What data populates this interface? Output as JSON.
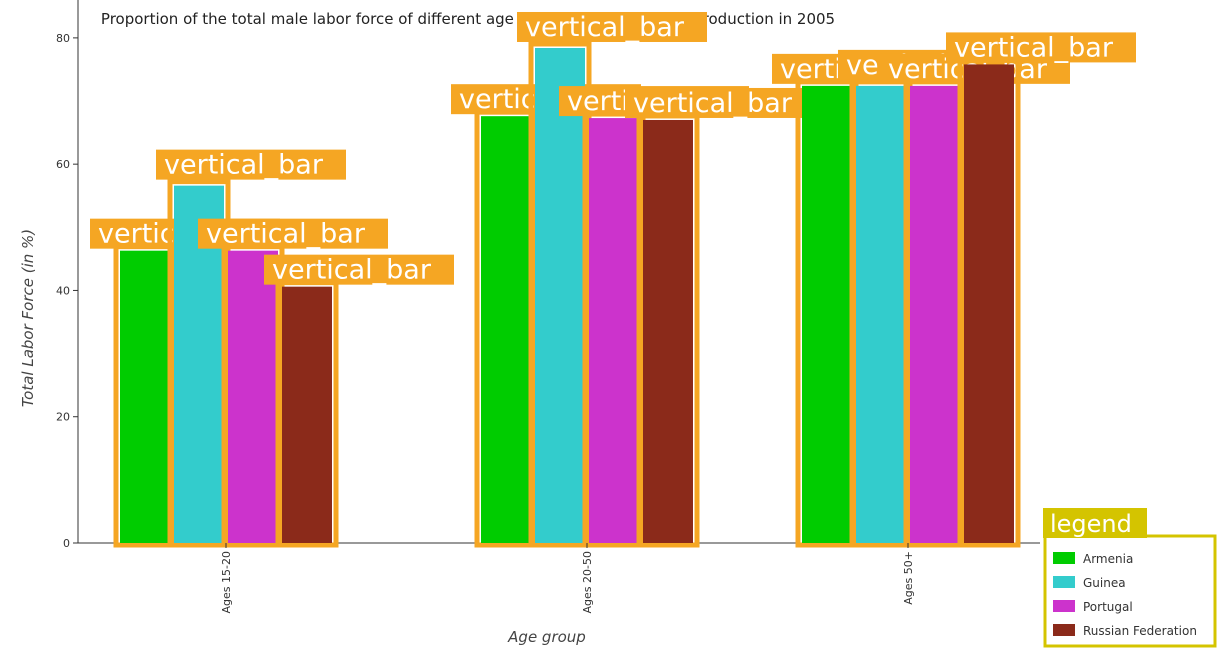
{
  "chart_data": {
    "type": "bar",
    "title": "Proportion of the total male labor force of different age groups participating in production in 2005",
    "xlabel": "Age group",
    "ylabel": "Total Labor Force (in %)",
    "ylim": [
      0,
      86
    ],
    "yticks": [
      0,
      20,
      40,
      60,
      80
    ],
    "categories": [
      "Ages 15-20",
      "Ages 20-50",
      "Ages 50+"
    ],
    "series": [
      {
        "name": "Armenia",
        "color": "#00cc00",
        "values": [
          46.3,
          67.6,
          72.4
        ]
      },
      {
        "name": "Guinea",
        "color": "#33cccc",
        "values": [
          56.6,
          78.4,
          72.4
        ]
      },
      {
        "name": "Portugal",
        "color": "#cc33cc",
        "values": [
          46.3,
          67.3,
          72.4
        ]
      },
      {
        "name": "Russian Federation",
        "color": "#8b2a1a",
        "values": [
          40.6,
          67.0,
          75.8
        ]
      }
    ],
    "annotation_text": "vertical_bar",
    "legend_title": "legend",
    "legend_position": "bottom-right",
    "grid": false,
    "highlight_color": "#f5a623"
  }
}
